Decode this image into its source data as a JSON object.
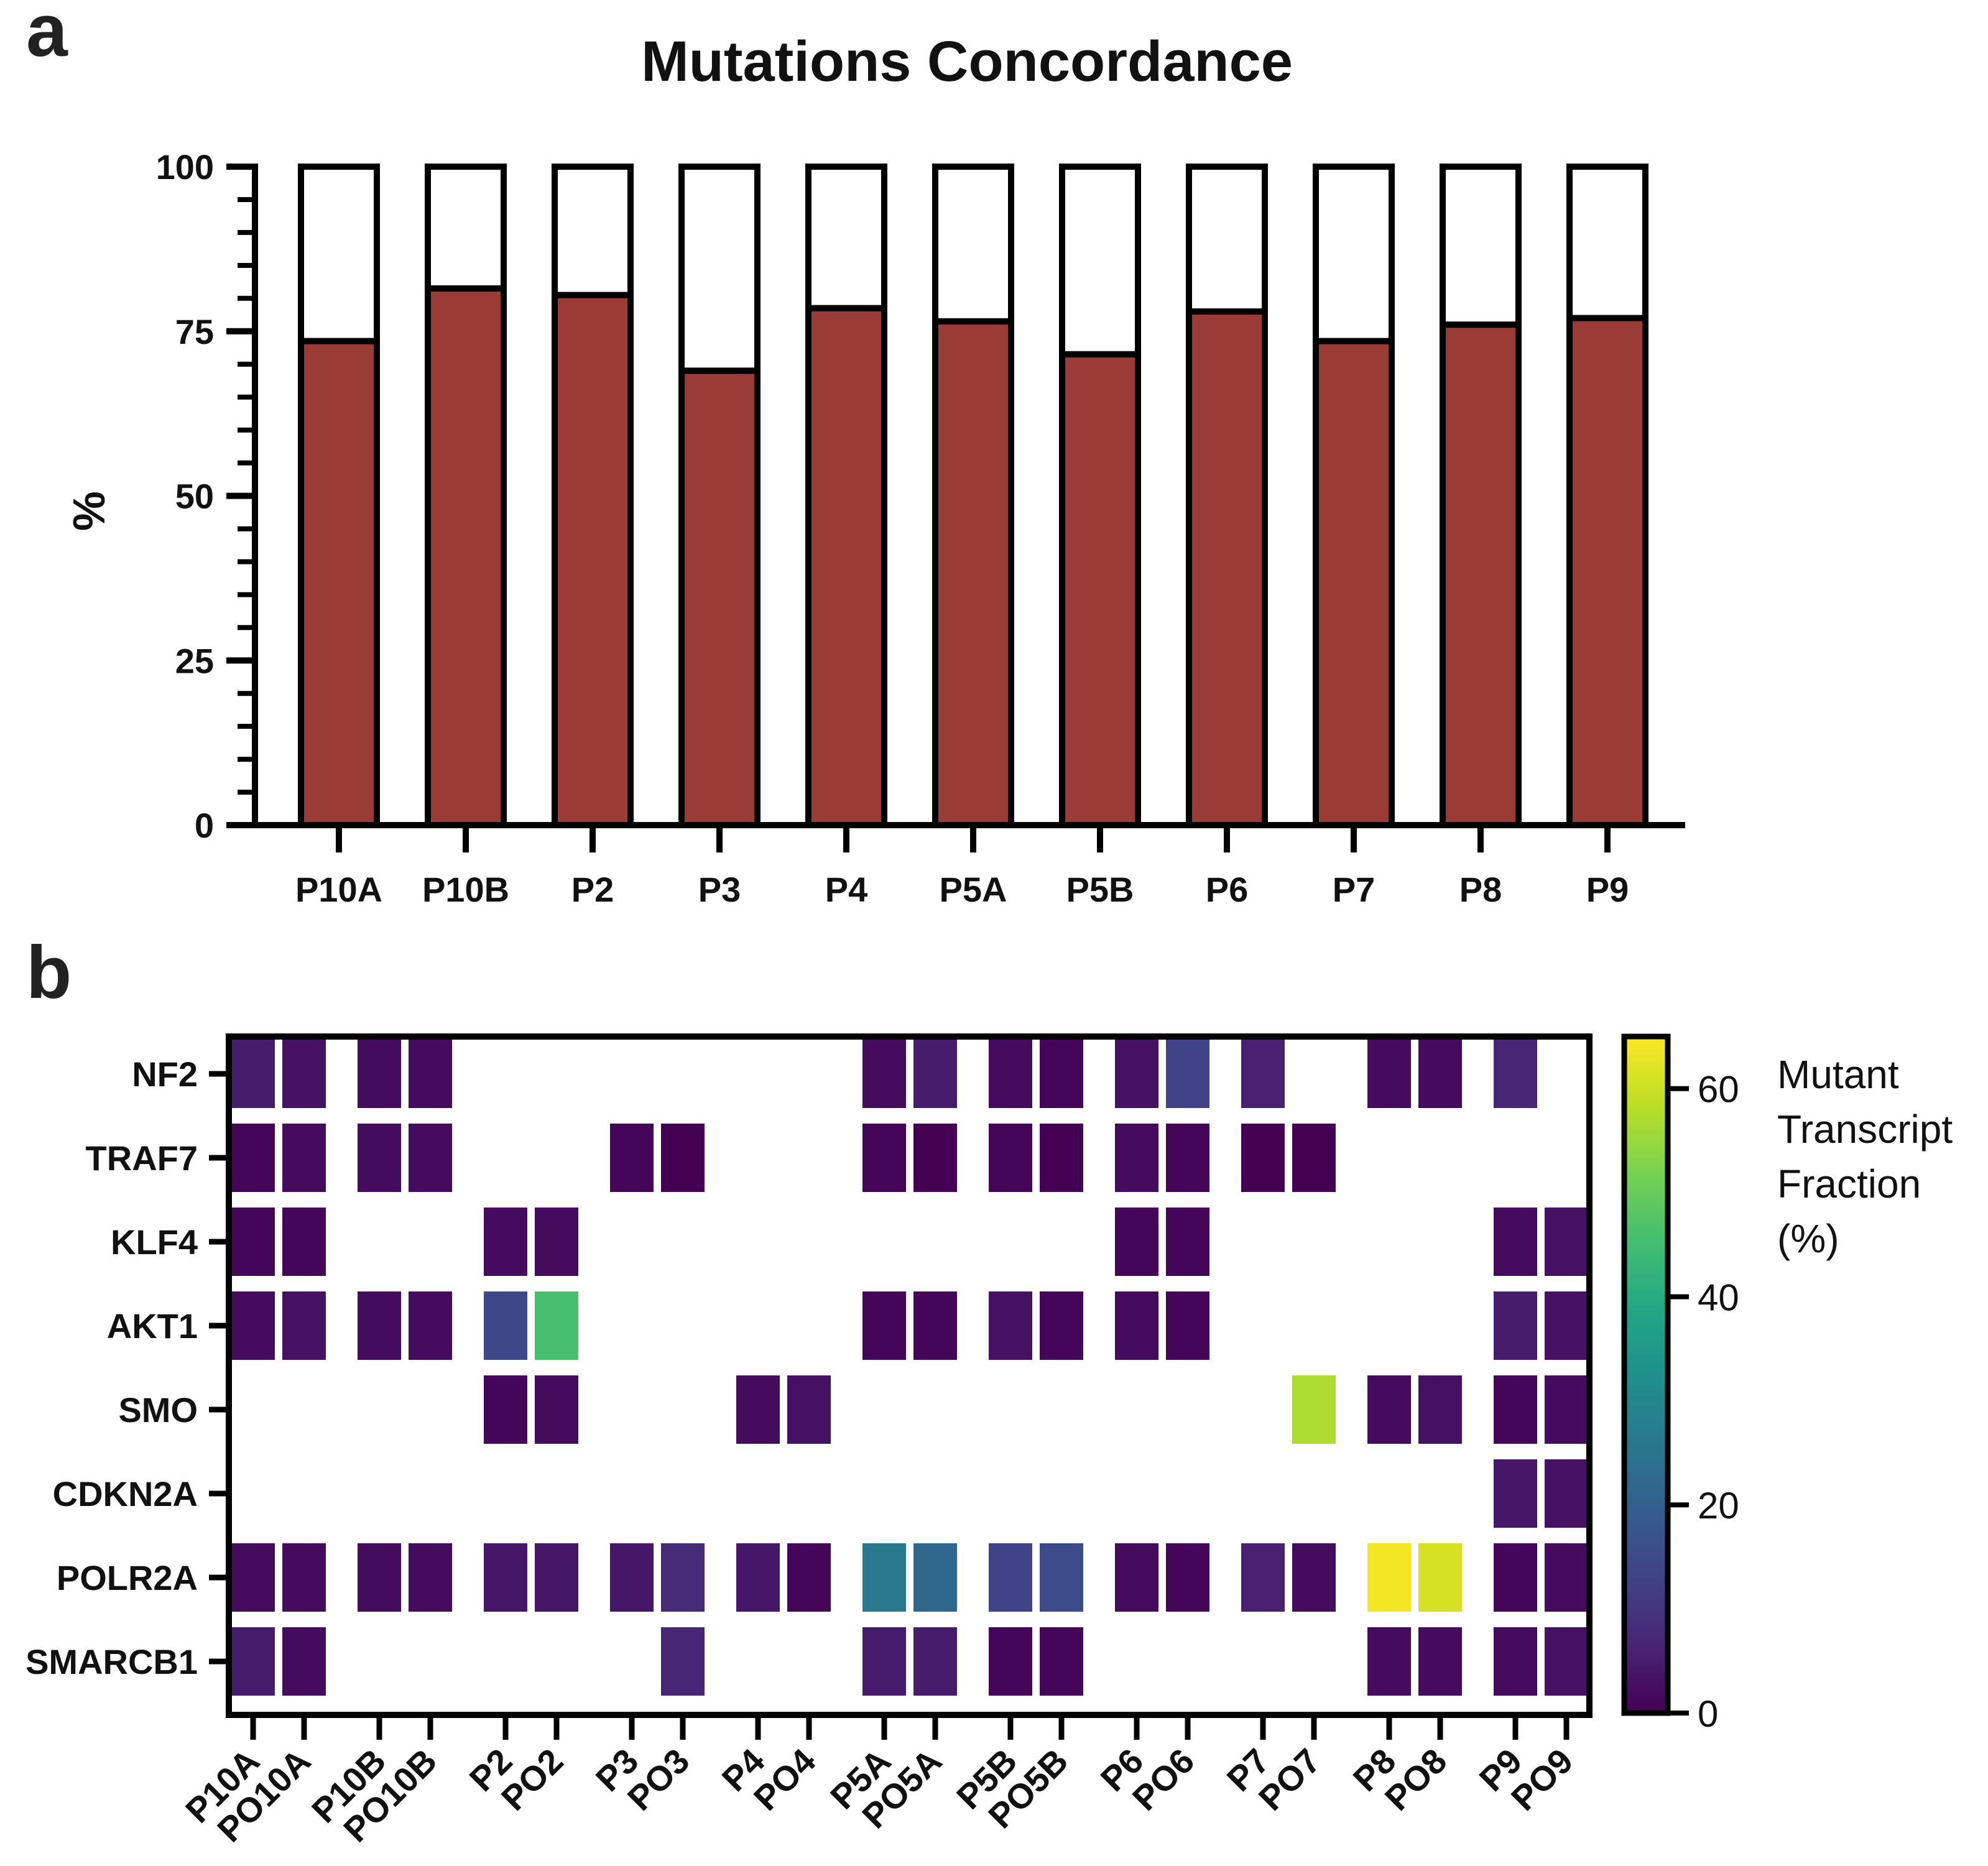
{
  "panel_a_letter": "a",
  "panel_b_letter": "b",
  "chart_data": [
    {
      "type": "bar",
      "title": "Mutations Concordance",
      "ylabel": "%",
      "xlabel": "",
      "ylim": [
        0,
        100
      ],
      "yticks": [
        "0",
        "25",
        "50",
        "75",
        "100"
      ],
      "categories": [
        "P10A",
        "P10B",
        "P2",
        "P3",
        "P4",
        "P5A",
        "P5B",
        "P6",
        "P7",
        "P8",
        "P9"
      ],
      "values": [
        73.5,
        81.5,
        80.5,
        69,
        78.5,
        76.5,
        71.5,
        78,
        73.5,
        76,
        77
      ],
      "colors": {
        "concordant": "#9a3b36",
        "remainder": "#ffffff",
        "outline": "#000000"
      }
    },
    {
      "type": "heatmap",
      "rows": [
        "NF2",
        "TRAF7",
        "KLF4",
        "AKT1",
        "SMO",
        "CDKN2A",
        "POLR2A",
        "SMARCB1"
      ],
      "columns": [
        "P10A",
        "PO10A",
        "P10B",
        "PO10B",
        "P2",
        "PO2",
        "P3",
        "PO3",
        "P4",
        "PO4",
        "P5A",
        "PO5A",
        "P5B",
        "PO5B",
        "P6",
        "PO6",
        "P7",
        "PO7",
        "P8",
        "PO8",
        "P9",
        "PO9"
      ],
      "values": [
        [
          5,
          3,
          2,
          2,
          null,
          null,
          null,
          null,
          null,
          null,
          2,
          5,
          2,
          1,
          3,
          13,
          6,
          null,
          2,
          2,
          7,
          null
        ],
        [
          1,
          2,
          2,
          2,
          null,
          null,
          1,
          0,
          null,
          null,
          1,
          0,
          1,
          0,
          2,
          1,
          0,
          0,
          null,
          null,
          null,
          null
        ],
        [
          1,
          1,
          null,
          null,
          2,
          2,
          null,
          null,
          null,
          null,
          null,
          null,
          null,
          null,
          1,
          1,
          null,
          null,
          null,
          null,
          2,
          3
        ],
        [
          2,
          3,
          2,
          2,
          14,
          46,
          null,
          null,
          null,
          null,
          1,
          1,
          3,
          1,
          2,
          1,
          null,
          null,
          null,
          null,
          5,
          3
        ],
        [
          null,
          null,
          null,
          null,
          1,
          2,
          null,
          null,
          2,
          3,
          null,
          null,
          null,
          null,
          null,
          null,
          null,
          57,
          2,
          3,
          1,
          2
        ],
        [
          null,
          null,
          null,
          null,
          null,
          null,
          null,
          null,
          null,
          null,
          null,
          null,
          null,
          null,
          null,
          null,
          null,
          null,
          null,
          null,
          4,
          3
        ],
        [
          2,
          2,
          2,
          2,
          4,
          4,
          4,
          8,
          4,
          1,
          26,
          22,
          13,
          15,
          2,
          1,
          6,
          2,
          64,
          61,
          1,
          2
        ],
        [
          5,
          2,
          null,
          null,
          null,
          null,
          null,
          7,
          null,
          null,
          5,
          5,
          1,
          1,
          null,
          null,
          null,
          null,
          2,
          2,
          2,
          3
        ]
      ],
      "colorbar": {
        "title": [
          "Mutant",
          "Transcript",
          "Fraction",
          "(%)"
        ],
        "ticks": [
          "0",
          "20",
          "40",
          "60"
        ],
        "range": [
          0,
          65
        ],
        "colormap": "viridis"
      }
    }
  ]
}
